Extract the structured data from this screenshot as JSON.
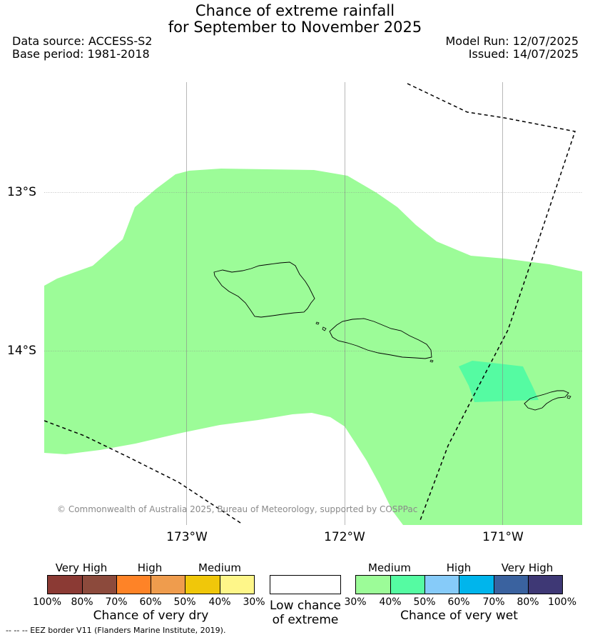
{
  "title_line1": "Chance of extreme rainfall",
  "title_line2": "for September to November 2025",
  "data_source": "Data source: ACCESS-S2",
  "base_period": "Base period: 1981-2018",
  "model_run": "Model Run: 12/07/2025",
  "issued": "Issued: 14/07/2025",
  "map": {
    "lat_labels": [
      "13°S",
      "14°S"
    ],
    "lon_labels": [
      "173°W",
      "172°W",
      "171°W"
    ],
    "copyright": "© Commonwealth of Australia 2025, Bureau of Meteorology, supported by COSPPac",
    "colors": {
      "medium_wet": "#9cfc98",
      "high_wet_40_50": "#55fba2",
      "land_outline": "#000000",
      "eez_border": "#000000"
    }
  },
  "legend": {
    "dry": {
      "category_labels": [
        "Very High",
        "High",
        "Medium"
      ],
      "colors": [
        "#8b3a34",
        "#8c4a3c",
        "#fe8327",
        "#ef9c4d",
        "#f0c70a",
        "#fef689"
      ],
      "ticks": [
        "100%",
        "80%",
        "70%",
        "60%",
        "50%",
        "40%",
        "30%"
      ],
      "title": "Chance of very dry"
    },
    "low": {
      "line1": "Low chance",
      "line2": "of extreme"
    },
    "wet": {
      "category_labels": [
        "Medium",
        "High",
        "Very High"
      ],
      "colors": [
        "#9cfc98",
        "#55fba2",
        "#86cbf9",
        "#00b5ec",
        "#3a629f",
        "#3e3875"
      ],
      "ticks": [
        "30%",
        "40%",
        "50%",
        "60%",
        "70%",
        "80%",
        "100%"
      ],
      "title": "Chance of very wet"
    }
  },
  "footnote": "--  --  -- EEZ border V11 (Flanders Marine Institute, 2019)."
}
